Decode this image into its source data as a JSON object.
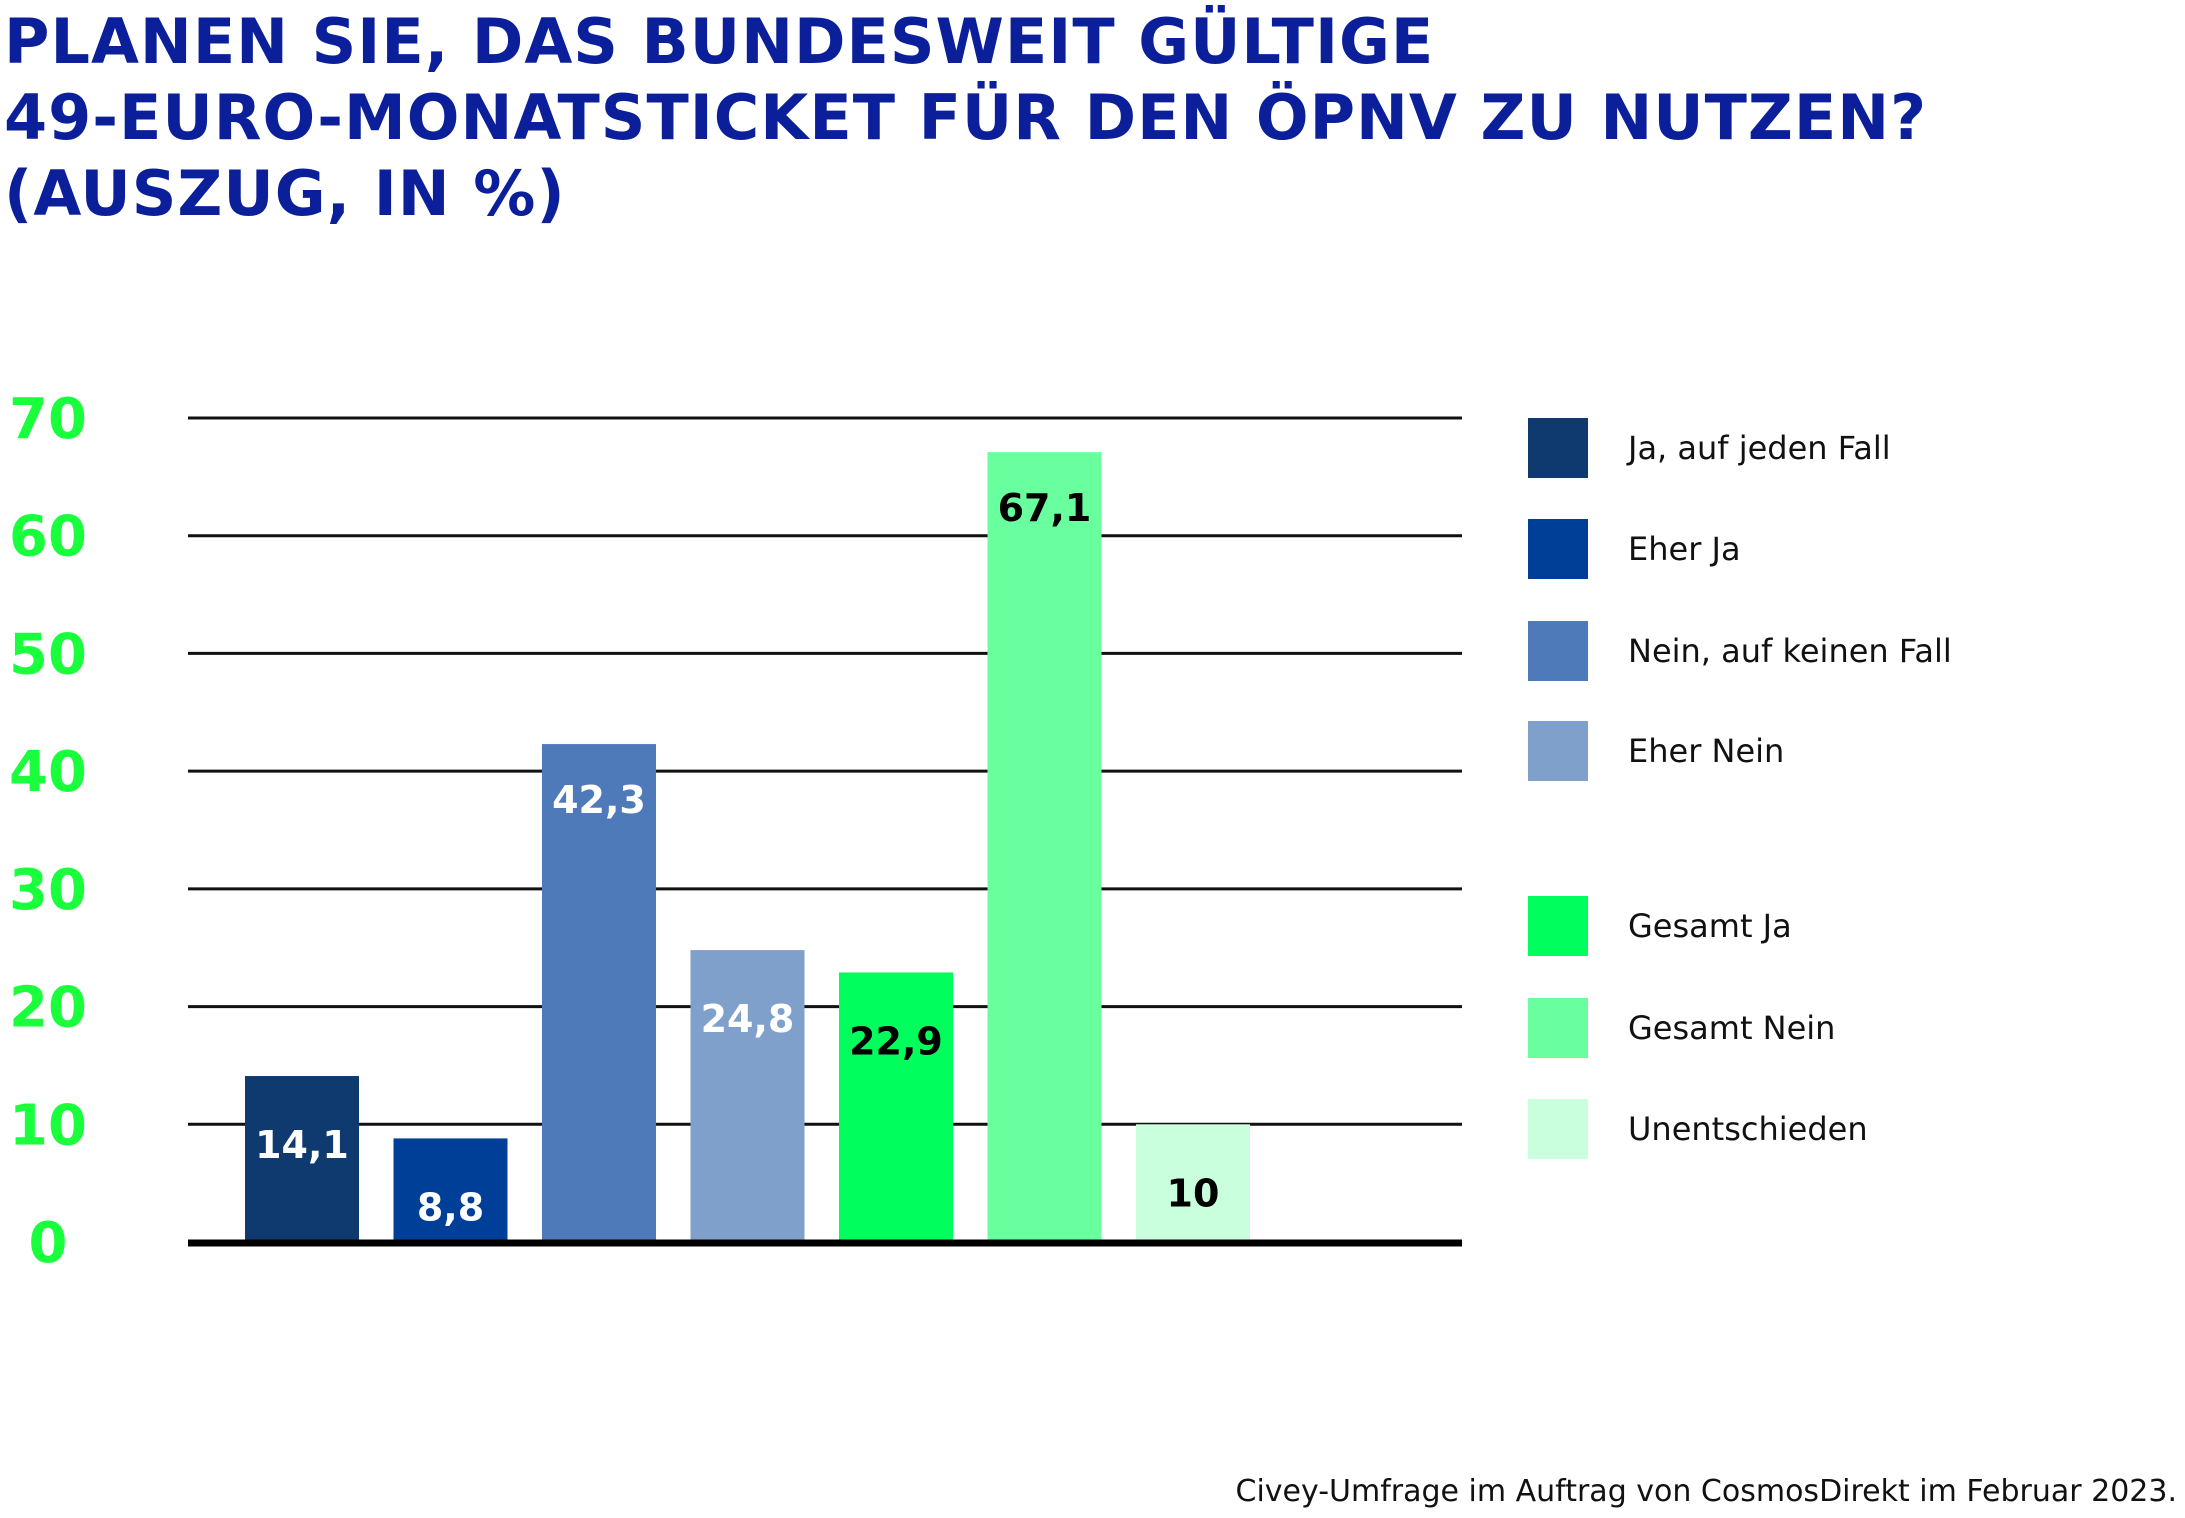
{
  "chart_data": {
    "type": "bar",
    "title_lines": [
      "PLANEN SIE, DAS BUNDESWEIT GÜLTIGE",
      "49-EURO-MONATSTICKET FÜR DEN ÖPNV ZU NUTZEN?",
      "(AUSZUG, IN %)"
    ],
    "categories": [
      "Ja, auf jeden Fall",
      "Eher Ja",
      "Nein, auf keinen Fall",
      "Eher Nein",
      "Gesamt Ja",
      "Gesamt Nein",
      "Unentschieden"
    ],
    "values": [
      14.1,
      8.8,
      42.3,
      24.8,
      22.9,
      67.1,
      10
    ],
    "value_labels": [
      "14,1",
      "8,8",
      "42,3",
      "24,8",
      "22,9",
      "67,1",
      "10"
    ],
    "colors": [
      "#0e3a70",
      "#003f97",
      "#4f7ab9",
      "#7fa0ca",
      "#00ff5d",
      "#69ff9f",
      "#c9ffdc"
    ],
    "label_colors": [
      "#ffffff",
      "#ffffff",
      "#ffffff",
      "#ffffff",
      "#000000",
      "#000000",
      "#000000"
    ],
    "ylim": [
      0,
      70
    ],
    "yticks": [
      "0",
      "10",
      "20",
      "30",
      "40",
      "50",
      "60",
      "70"
    ],
    "grid": true,
    "legend_position": "right",
    "legend": [
      {
        "label": "Ja, auf jeden Fall",
        "color": "#0e3a70"
      },
      {
        "label": "Eher Ja",
        "color": "#003f97"
      },
      {
        "label": "Nein, auf keinen Fall",
        "color": "#4f7ab9"
      },
      {
        "label": "Eher Nein",
        "color": "#7fa0ca"
      },
      {
        "label": "Gesamt Ja",
        "color": "#00ff5d"
      },
      {
        "label": "Gesamt Nein",
        "color": "#69ff9f"
      },
      {
        "label": "Unentschieden",
        "color": "#c9ffdc"
      }
    ],
    "source": "Civey-Umfrage im Auftrag von CosmosDirekt im Februar 2023."
  }
}
